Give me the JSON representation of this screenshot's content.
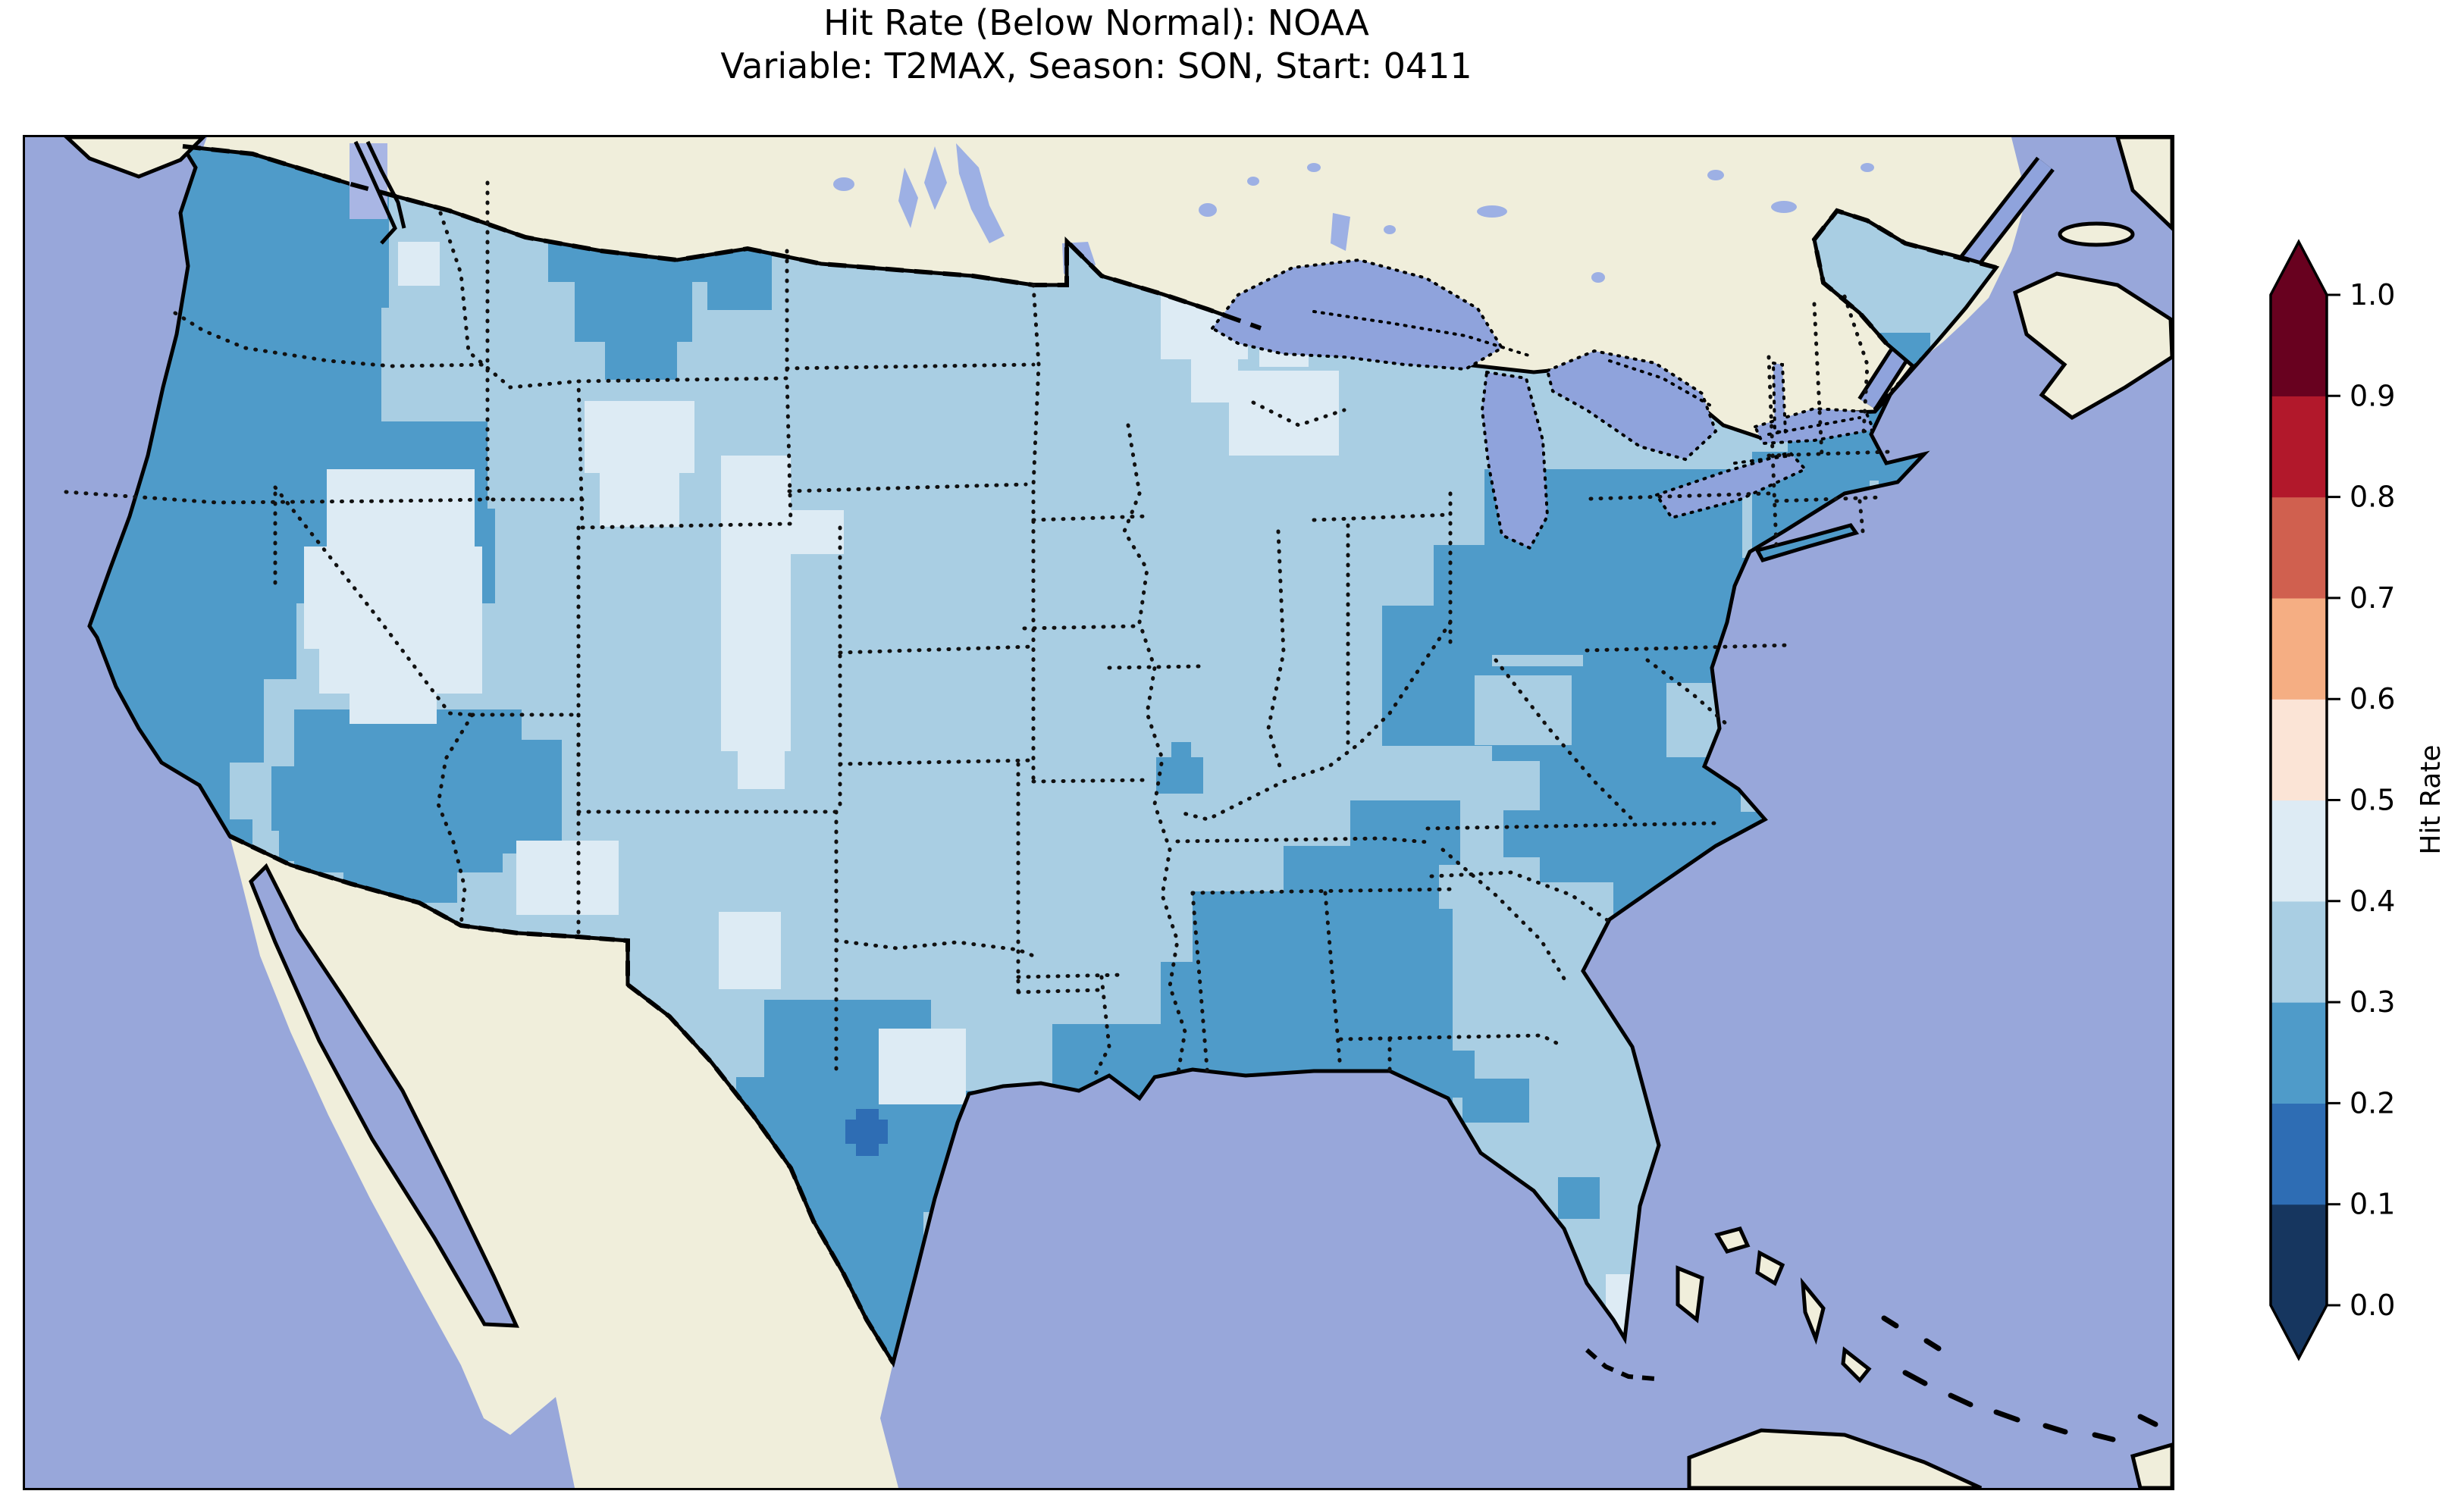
{
  "title": {
    "line1": "Hit Rate (Below Normal): NOAA",
    "line2": "Variable: T2MAX, Season: SON, Start: 0411"
  },
  "colorbar": {
    "label": "Hit Rate",
    "ticks": [
      "0.0",
      "0.1",
      "0.2",
      "0.3",
      "0.4",
      "0.5",
      "0.6",
      "0.7",
      "0.8",
      "0.9",
      "1.0"
    ],
    "extend": "both",
    "under_color": "#16365f",
    "over_color": "#68011f",
    "segments_low_to_high": [
      {
        "range": "0.0-0.1",
        "color": "#16365f"
      },
      {
        "range": "0.1-0.2",
        "color": "#2e6db4"
      },
      {
        "range": "0.2-0.3",
        "color": "#4f9bc9"
      },
      {
        "range": "0.3-0.4",
        "color": "#a9cee3"
      },
      {
        "range": "0.4-0.5",
        "color": "#ddebf4"
      },
      {
        "range": "0.5-0.6",
        "color": "#fbe4d6"
      },
      {
        "range": "0.6-0.7",
        "color": "#f5ae83"
      },
      {
        "range": "0.7-0.8",
        "color": "#d0604f"
      },
      {
        "range": "0.8-0.9",
        "color": "#b2182b"
      },
      {
        "range": "0.9-1.0",
        "color": "#68011f"
      }
    ]
  },
  "map": {
    "colors": {
      "ocean": "#98a7da",
      "land": "#f0eedb",
      "lake": "#8fa3dc",
      "small_lake": "#9db0e4",
      "puget_cells": "#a9b6e4",
      "coastline": "#000000",
      "border": "#111111"
    }
  },
  "chart_data": {
    "type": "heatmap",
    "title": "Hit Rate (Below Normal): NOAA",
    "subtitle": "Variable: T2MAX, Season: SON, Start: 0411",
    "source": "NOAA",
    "variable": "T2MAX",
    "season": "SON",
    "start": "0411",
    "colorbar_label": "Hit Rate",
    "value_range": [
      0.0,
      1.0
    ],
    "bin_width": 0.1,
    "legend_position": "right",
    "bin_colors": {
      "0.0-0.1": "#16365f",
      "0.1-0.2": "#2e6db4",
      "0.2-0.3": "#4f9bc9",
      "0.3-0.4": "#a9cee3",
      "0.4-0.5": "#ddebf4",
      "0.5-0.6": "#fbe4d6",
      "0.6-0.7": "#f5ae83",
      "0.7-0.8": "#d0604f",
      "0.8-0.9": "#b2182b",
      "0.9-1.0": "#68011f"
    },
    "base_region": {
      "name": "conus-base",
      "bin": "0.3-0.4"
    },
    "regions": [
      {
        "name": "pacific-northwest-coastal",
        "bin": "0.2-0.3",
        "rects": [
          [
            150,
            0,
            330,
            105
          ],
          [
            100,
            105,
            380,
            120
          ],
          [
            70,
            225,
            400,
            150
          ],
          [
            50,
            375,
            560,
            115
          ],
          [
            40,
            490,
            580,
            125
          ],
          [
            28,
            615,
            330,
            100
          ],
          [
            40,
            715,
            275,
            110
          ],
          [
            100,
            820,
            170,
            95
          ],
          [
            140,
            900,
            160,
            60
          ]
        ]
      },
      {
        "name": "socal-sw-arizona",
        "bin": "0.2-0.3",
        "rects": [
          [
            335,
            900,
            110,
            55
          ]
        ]
      },
      {
        "name": "montana",
        "bin": "0.2-0.3",
        "rects": [
          [
            690,
            96,
            215,
            95
          ],
          [
            725,
            190,
            155,
            80
          ],
          [
            765,
            265,
            95,
            55
          ],
          [
            900,
            148,
            85,
            80
          ]
        ]
      },
      {
        "name": "four-corners",
        "bin": "0.2-0.3",
        "rects": [
          [
            355,
            755,
            300,
            75
          ],
          [
            325,
            830,
            340,
            85
          ],
          [
            355,
            915,
            275,
            55
          ],
          [
            420,
            968,
            150,
            42
          ],
          [
            548,
            795,
            160,
            150
          ],
          [
            540,
            706,
            28,
            28
          ]
        ]
      },
      {
        "name": "south-central-texas",
        "bin": "0.2-0.3",
        "rects": [
          [
            975,
            1138,
            220,
            105
          ],
          [
            938,
            1240,
            270,
            145
          ],
          [
            1000,
            1385,
            185,
            120
          ],
          [
            1058,
            1502,
            125,
            112
          ],
          [
            1150,
            1258,
            240,
            95
          ],
          [
            1178,
            1348,
            145,
            70
          ]
        ]
      },
      {
        "name": "louisiana",
        "bin": "0.2-0.3",
        "rects": [
          [
            1355,
            1170,
            180,
            175
          ],
          [
            1450,
            1240,
            110,
            80
          ]
        ]
      },
      {
        "name": "southeast",
        "bin": "0.2-0.3",
        "rects": [
          [
            1540,
            995,
            130,
            95
          ],
          [
            1498,
            1088,
            205,
            125
          ],
          [
            1516,
            1210,
            190,
            115
          ],
          [
            1660,
            935,
            205,
            85
          ],
          [
            1618,
            1018,
            265,
            125
          ],
          [
            1598,
            1140,
            285,
            135
          ],
          [
            1638,
            1272,
            245,
            90
          ],
          [
            1797,
            1205,
            115,
            62
          ],
          [
            1896,
            1242,
            88,
            58
          ],
          [
            1950,
            888,
            65,
            62
          ],
          [
            1748,
            875,
            145,
            85
          ]
        ]
      },
      {
        "name": "appalachia-midatlantic-northeast",
        "bin": "0.2-0.3",
        "rects": [
          [
            1790,
            618,
            145,
            185
          ],
          [
            1858,
            538,
            205,
            145
          ],
          [
            1925,
            438,
            340,
            125
          ],
          [
            2055,
            555,
            310,
            165
          ],
          [
            1935,
            698,
            230,
            125
          ],
          [
            1998,
            818,
            265,
            165
          ],
          [
            2095,
            978,
            170,
            105
          ],
          [
            2278,
            415,
            155,
            145
          ],
          [
            2325,
            328,
            190,
            125
          ],
          [
            2445,
            388,
            100,
            75
          ],
          [
            2428,
            258,
            85,
            75
          ],
          [
            2180,
            890,
            110,
            85
          ]
        ]
      },
      {
        "name": "missouri-spot",
        "bin": "0.2-0.3",
        "rects": [
          [
            1492,
            818,
            62,
            48
          ],
          [
            1512,
            798,
            26,
            26
          ]
        ]
      },
      {
        "name": "south-florida-spot",
        "bin": "0.2-0.3",
        "rects": [
          [
            2022,
            1372,
            55,
            55
          ]
        ]
      },
      {
        "name": "west-virginia-hole",
        "bin": "0.3-0.4",
        "rects": [
          [
            1912,
            710,
            128,
            92
          ]
        ]
      },
      {
        "name": "great-basin",
        "bin": "0.4-0.5",
        "rects": [
          [
            398,
            438,
            195,
            105
          ],
          [
            368,
            540,
            235,
            135
          ],
          [
            388,
            672,
            215,
            62
          ],
          [
            428,
            732,
            115,
            42
          ]
        ]
      },
      {
        "name": "north-wyoming",
        "bin": "0.4-0.5",
        "rects": [
          [
            738,
            348,
            145,
            95
          ],
          [
            758,
            442,
            105,
            72
          ]
        ]
      },
      {
        "name": "east-colorado-band",
        "bin": "0.4-0.5",
        "rects": [
          [
            918,
            420,
            92,
            390
          ],
          [
            1008,
            492,
            72,
            58
          ],
          [
            940,
            808,
            62,
            52
          ]
        ]
      },
      {
        "name": "new-mexico-diamond",
        "bin": "0.4-0.5",
        "rects": [
          [
            648,
            928,
            135,
            98
          ]
        ]
      },
      {
        "name": "west-texas-patch",
        "bin": "0.4-0.5",
        "rects": [
          [
            915,
            1022,
            82,
            102
          ]
        ]
      },
      {
        "name": "houston-pale-hole",
        "bin": "0.4-0.5",
        "rects": [
          [
            1126,
            1176,
            115,
            100
          ]
        ]
      },
      {
        "name": "lake-superior-shore",
        "bin": "0.4-0.5",
        "rects": [
          [
            1498,
            208,
            115,
            85
          ],
          [
            1628,
            258,
            65,
            45
          ],
          [
            1588,
            308,
            145,
            112
          ],
          [
            1538,
            288,
            62,
            62
          ]
        ]
      },
      {
        "name": "montana-white-cross",
        "bin": "0.4-0.5",
        "rects": [
          [
            492,
            138,
            55,
            58
          ]
        ]
      },
      {
        "name": "south-florida-pale",
        "bin": "0.4-0.5",
        "rects": [
          [
            2055,
            1558,
            65,
            62
          ],
          [
            2085,
            1500,
            40,
            60
          ]
        ]
      },
      {
        "name": "florida-keys-cells",
        "bin": "0.4-0.5",
        "rects": [
          [
            2048,
            1590,
            16,
            16
          ],
          [
            2072,
            1590,
            16,
            16
          ],
          [
            2098,
            1590,
            16,
            16
          ]
        ]
      },
      {
        "name": "south-texas-dark-spot",
        "bin": "0.1-0.2",
        "rects": [
          [
            1082,
            1296,
            56,
            32
          ],
          [
            1096,
            1282,
            30,
            62
          ]
        ]
      },
      {
        "name": "duluth-pink-cell",
        "bin": "0.5-0.6",
        "rects": [
          [
            1594,
            226,
            30,
            30
          ]
        ]
      }
    ]
  }
}
